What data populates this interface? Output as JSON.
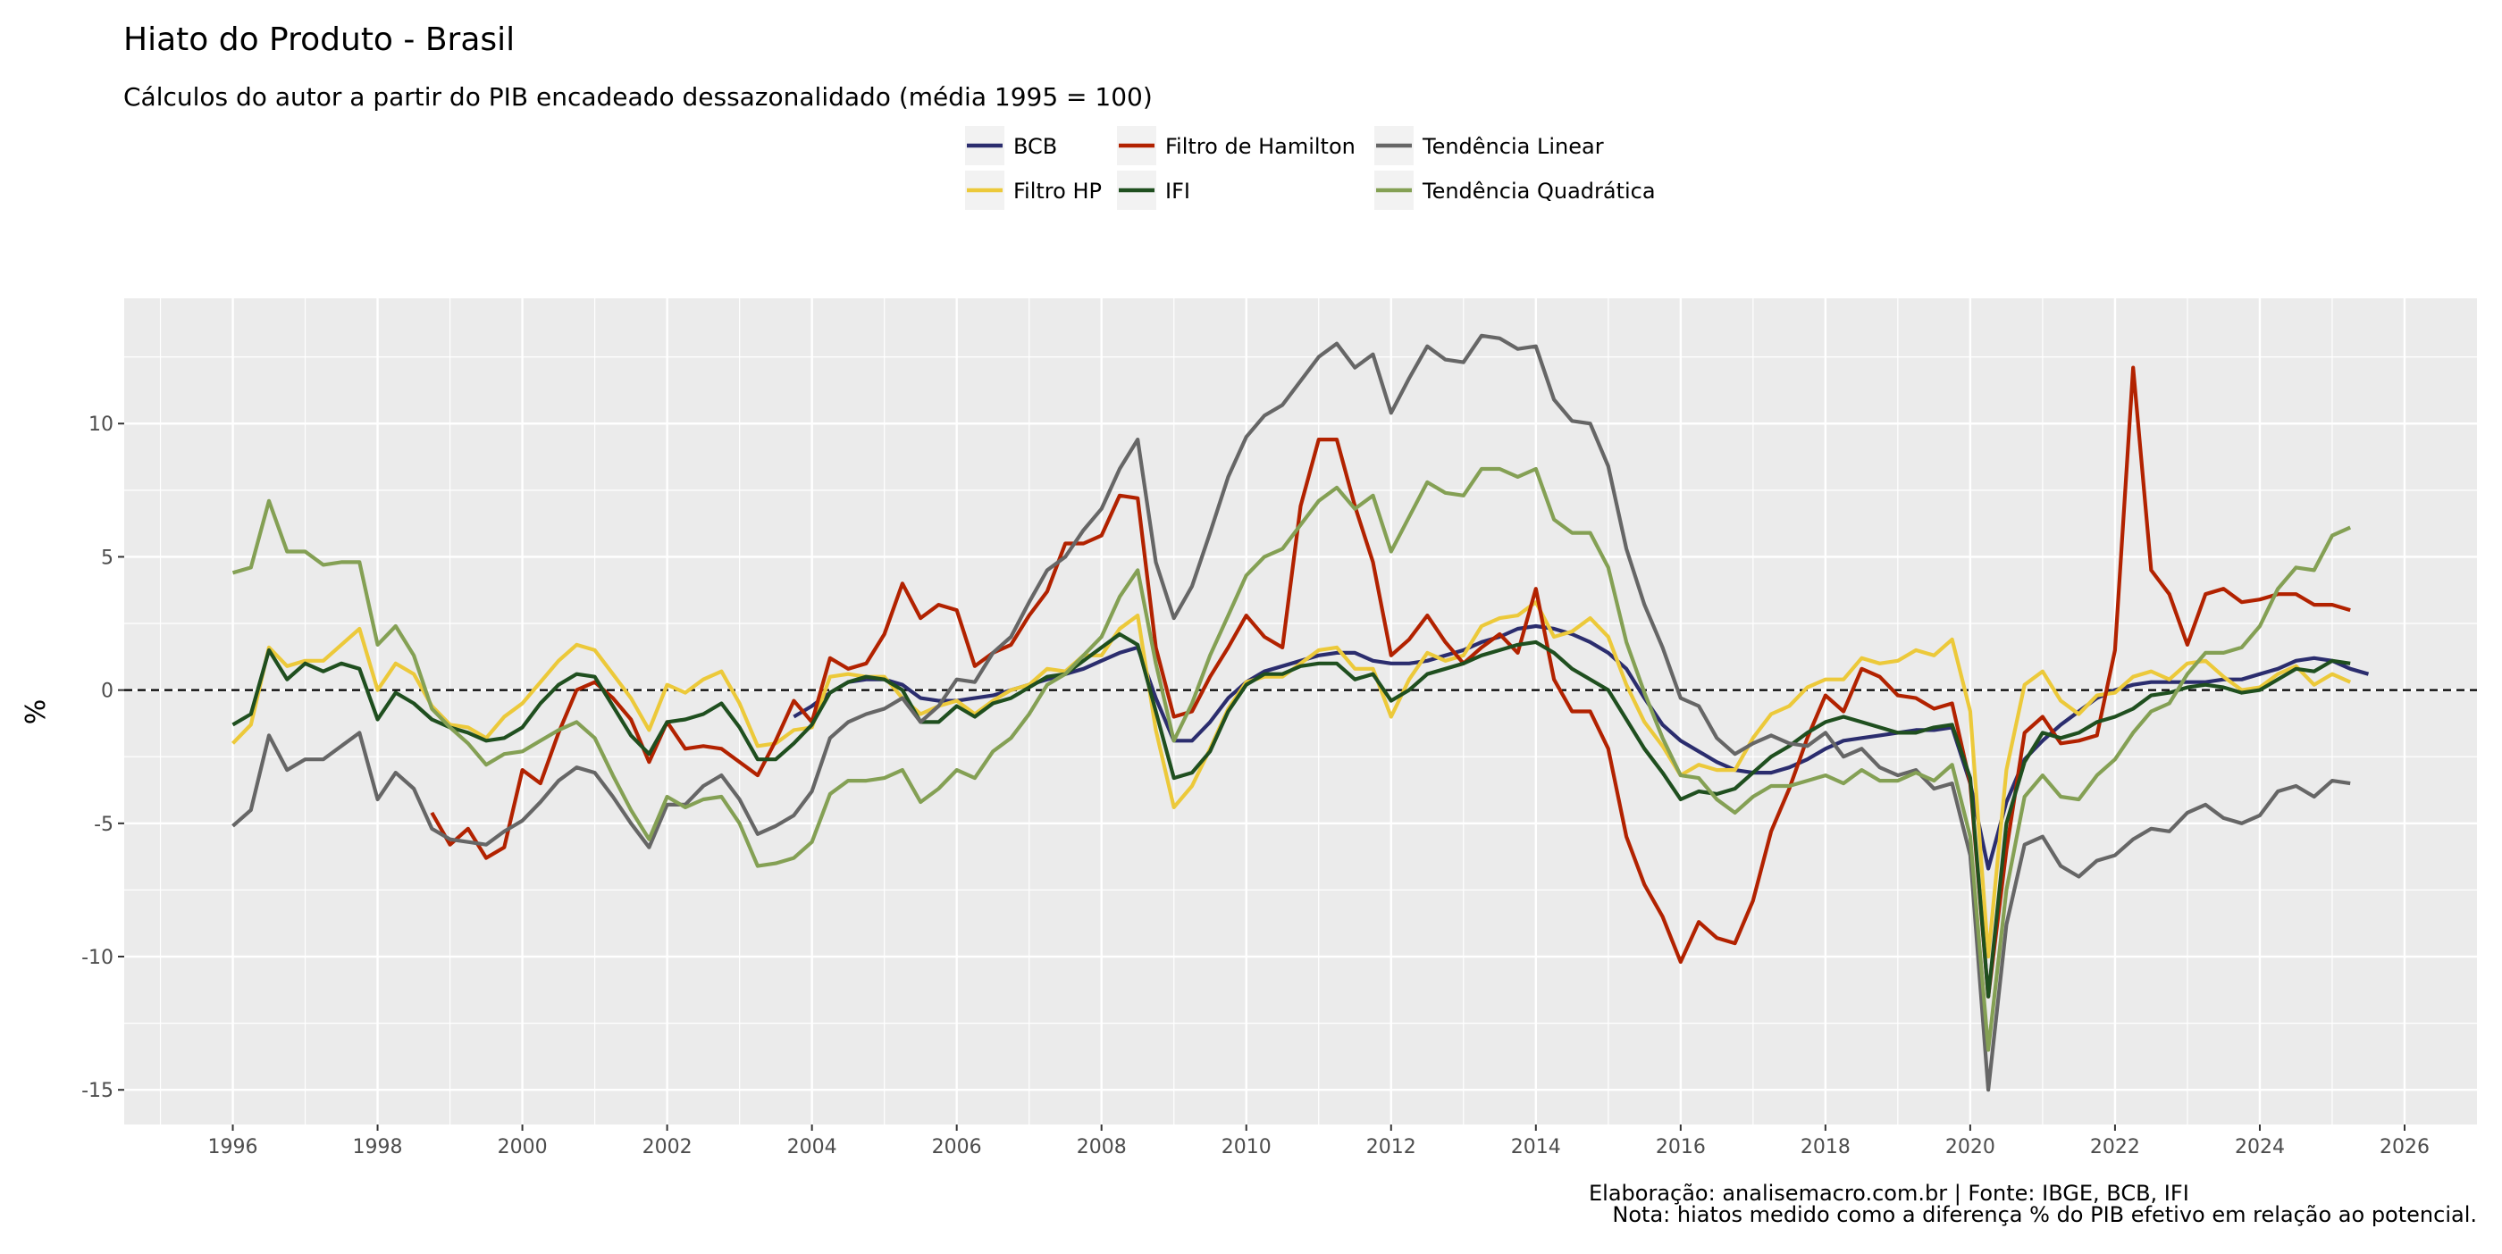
{
  "chart_data": {
    "type": "line",
    "title": "Hiato do Produto - Brasil",
    "subtitle": "Cálculos do autor a partir do PIB encadeado dessazonalidado (média 1995 = 100)",
    "xlabel": "",
    "ylabel": "%",
    "xlim": [
      1994.5,
      2027.0
    ],
    "ylim": [
      -16.3,
      14.7
    ],
    "x_ticks": [
      "1996",
      "1998",
      "2000",
      "2002",
      "2004",
      "2006",
      "2008",
      "2010",
      "2012",
      "2014",
      "2016",
      "2018",
      "2020",
      "2022",
      "2024",
      "2026"
    ],
    "y_ticks": [
      "-15",
      "-10",
      "-5",
      "0",
      "5",
      "10"
    ],
    "grid": true,
    "reference_line": {
      "y": 0,
      "style": "dashed"
    },
    "legend_placement": "top",
    "frequency": "quarterly",
    "series": [
      {
        "name": "BCB",
        "color": "#2b2d6e",
        "start": "2003-Q4",
        "values": [
          -1.0,
          -0.6,
          -0.1,
          0.3,
          0.4,
          0.4,
          0.2,
          -0.3,
          -0.4,
          -0.4,
          -0.3,
          -0.2,
          0.0,
          0.2,
          0.4,
          0.6,
          0.8,
          1.1,
          1.4,
          1.6,
          -0.3,
          -1.9,
          -1.9,
          -1.2,
          -0.3,
          0.3,
          0.7,
          0.9,
          1.1,
          1.3,
          1.4,
          1.4,
          1.1,
          1.0,
          1.0,
          1.1,
          1.3,
          1.5,
          1.8,
          2.0,
          2.3,
          2.4,
          2.3,
          2.1,
          1.8,
          1.4,
          0.8,
          -0.3,
          -1.3,
          -1.9,
          -2.3,
          -2.7,
          -3.0,
          -3.1,
          -3.1,
          -2.9,
          -2.6,
          -2.2,
          -1.9,
          -1.8,
          -1.7,
          -1.6,
          -1.5,
          -1.5,
          -1.4,
          -3.5,
          -6.7,
          -4.2,
          -2.6,
          -1.9,
          -1.3,
          -0.8,
          -0.3,
          0.0,
          0.2,
          0.3,
          0.3,
          0.3,
          0.3,
          0.4,
          0.4,
          0.6,
          0.8,
          1.1,
          1.2,
          1.1,
          0.8,
          0.6
        ]
      },
      {
        "name": "Filtro HP",
        "color": "#ecc93a",
        "start": "1996-Q1",
        "values": [
          -2.0,
          -1.3,
          1.6,
          0.9,
          1.1,
          1.1,
          1.7,
          2.3,
          0.0,
          1.0,
          0.6,
          -0.6,
          -1.3,
          -1.4,
          -1.8,
          -1.0,
          -0.5,
          0.3,
          1.1,
          1.7,
          1.5,
          0.6,
          -0.3,
          -1.5,
          0.2,
          -0.1,
          0.4,
          0.7,
          -0.5,
          -2.1,
          -2.0,
          -1.5,
          -1.4,
          0.5,
          0.6,
          0.5,
          0.5,
          -0.3,
          -0.9,
          -0.6,
          -0.4,
          -0.9,
          -0.4,
          0.0,
          0.2,
          0.8,
          0.7,
          1.3,
          1.3,
          2.3,
          2.8,
          -1.5,
          -4.4,
          -3.6,
          -2.2,
          -0.7,
          0.3,
          0.5,
          0.5,
          1.0,
          1.5,
          1.6,
          0.8,
          0.8,
          -1.0,
          0.4,
          1.4,
          1.1,
          1.3,
          2.4,
          2.7,
          2.8,
          3.3,
          2.0,
          2.2,
          2.7,
          2.0,
          0.2,
          -1.2,
          -2.1,
          -3.2,
          -2.8,
          -3.0,
          -3.0,
          -1.8,
          -0.9,
          -0.6,
          0.1,
          0.4,
          0.4,
          1.2,
          1.0,
          1.1,
          1.5,
          1.3,
          1.9,
          -0.8,
          -10.0,
          -3.0,
          0.2,
          0.7,
          -0.4,
          -0.9,
          -0.2,
          -0.1,
          0.5,
          0.7,
          0.4,
          1.0,
          1.1,
          0.5,
          0.0,
          0.1,
          0.6,
          0.9,
          0.2,
          0.6,
          0.3
        ]
      },
      {
        "name": "Filtro de Hamilton",
        "color": "#b22200",
        "start": "1998-Q4",
        "values": [
          -4.6,
          -5.8,
          -5.2,
          -6.3,
          -5.9,
          -3.0,
          -3.5,
          -1.6,
          0.0,
          0.3,
          -0.3,
          -1.1,
          -2.7,
          -1.2,
          -2.2,
          -2.1,
          -2.2,
          -2.7,
          -3.2,
          -1.9,
          -0.4,
          -1.2,
          1.2,
          0.8,
          1.0,
          2.1,
          4.0,
          2.7,
          3.2,
          3.0,
          0.9,
          1.4,
          1.7,
          2.8,
          3.7,
          5.5,
          5.5,
          5.8,
          7.3,
          7.2,
          1.6,
          -1.0,
          -0.8,
          0.5,
          1.6,
          2.8,
          2.0,
          1.6,
          6.9,
          9.4,
          9.4,
          6.9,
          4.8,
          1.3,
          1.9,
          2.8,
          1.8,
          1.0,
          1.6,
          2.1,
          1.4,
          3.8,
          0.4,
          -0.8,
          -0.8,
          -2.2,
          -5.5,
          -7.3,
          -8.5,
          -10.2,
          -8.7,
          -9.3,
          -9.5,
          -7.9,
          -5.3,
          -3.7,
          -1.8,
          -0.2,
          -0.8,
          0.8,
          0.5,
          -0.2,
          -0.3,
          -0.7,
          -0.5,
          -3.5,
          -11.5,
          -6.0,
          -1.6,
          -1.0,
          -2.0,
          -1.9,
          -1.7,
          1.5,
          12.1,
          4.5,
          3.6,
          1.7,
          3.6,
          3.8,
          3.3,
          3.4,
          3.6,
          3.6,
          3.2,
          3.2,
          3.0
        ]
      },
      {
        "name": "IFI",
        "color": "#1f4f1f",
        "start": "1996-Q1",
        "values": [
          -1.3,
          -0.9,
          1.5,
          0.4,
          1.0,
          0.7,
          1.0,
          0.8,
          -1.1,
          -0.1,
          -0.5,
          -1.1,
          -1.4,
          -1.6,
          -1.9,
          -1.8,
          -1.4,
          -0.5,
          0.2,
          0.6,
          0.5,
          -0.6,
          -1.7,
          -2.4,
          -1.2,
          -1.1,
          -0.9,
          -0.5,
          -1.4,
          -2.6,
          -2.6,
          -2.0,
          -1.3,
          -0.1,
          0.3,
          0.5,
          0.4,
          0.0,
          -1.2,
          -1.2,
          -0.6,
          -1.0,
          -0.5,
          -0.3,
          0.1,
          0.5,
          0.6,
          1.1,
          1.6,
          2.1,
          1.7,
          -0.8,
          -3.3,
          -3.1,
          -2.3,
          -0.8,
          0.2,
          0.6,
          0.6,
          0.9,
          1.0,
          1.0,
          0.4,
          0.6,
          -0.4,
          0.0,
          0.6,
          0.8,
          1.0,
          1.3,
          1.5,
          1.7,
          1.8,
          1.4,
          0.8,
          0.4,
          0.0,
          -1.1,
          -2.2,
          -3.1,
          -4.1,
          -3.8,
          -3.9,
          -3.7,
          -3.1,
          -2.5,
          -2.1,
          -1.6,
          -1.2,
          -1.0,
          -1.2,
          -1.4,
          -1.6,
          -1.6,
          -1.4,
          -1.3,
          -3.3,
          -11.5,
          -5.0,
          -2.7,
          -1.6,
          -1.8,
          -1.6,
          -1.2,
          -1.0,
          -0.7,
          -0.2,
          -0.1,
          0.1,
          0.2,
          0.1,
          -0.1,
          0.0,
          0.4,
          0.8,
          0.7,
          1.1,
          1.0
        ]
      },
      {
        "name": "Tendência Linear",
        "color": "#666666",
        "start": "1996-Q1",
        "values": [
          -5.1,
          -4.5,
          -1.7,
          -3.0,
          -2.6,
          -2.6,
          -2.1,
          -1.6,
          -4.1,
          -3.1,
          -3.7,
          -5.2,
          -5.6,
          -5.7,
          -5.8,
          -5.3,
          -4.9,
          -4.2,
          -3.4,
          -2.9,
          -3.1,
          -4.0,
          -5.0,
          -5.9,
          -4.3,
          -4.3,
          -3.6,
          -3.2,
          -4.1,
          -5.4,
          -5.1,
          -4.7,
          -3.8,
          -1.8,
          -1.2,
          -0.9,
          -0.7,
          -0.3,
          -1.2,
          -0.6,
          0.4,
          0.3,
          1.4,
          2.0,
          3.3,
          4.5,
          5.0,
          6.0,
          6.8,
          8.3,
          9.4,
          4.8,
          2.7,
          3.9,
          5.9,
          8.0,
          9.5,
          10.3,
          10.7,
          11.6,
          12.5,
          13.0,
          12.1,
          12.6,
          10.4,
          11.7,
          12.9,
          12.4,
          12.3,
          13.3,
          13.2,
          12.8,
          12.9,
          10.9,
          10.1,
          10.0,
          8.4,
          5.3,
          3.2,
          1.6,
          -0.3,
          -0.6,
          -1.8,
          -2.4,
          -2.0,
          -1.7,
          -2.0,
          -2.1,
          -1.6,
          -2.5,
          -2.2,
          -2.9,
          -3.2,
          -3.0,
          -3.7,
          -3.5,
          -6.2,
          -15.0,
          -8.8,
          -5.8,
          -5.5,
          -6.6,
          -7.0,
          -6.4,
          -6.2,
          -5.6,
          -5.2,
          -5.3,
          -4.6,
          -4.3,
          -4.8,
          -5.0,
          -4.7,
          -3.8,
          -3.6,
          -4.0,
          -3.4,
          -3.5
        ]
      },
      {
        "name": "Tendência Quadrática",
        "color": "#84a054",
        "start": "1996-Q1",
        "values": [
          4.4,
          4.6,
          7.1,
          5.2,
          5.2,
          4.7,
          4.8,
          4.8,
          1.7,
          2.4,
          1.3,
          -0.7,
          -1.4,
          -2.0,
          -2.8,
          -2.4,
          -2.3,
          -1.9,
          -1.5,
          -1.2,
          -1.8,
          -3.2,
          -4.5,
          -5.6,
          -4.0,
          -4.4,
          -4.1,
          -4.0,
          -5.0,
          -6.6,
          -6.5,
          -6.3,
          -5.7,
          -3.9,
          -3.4,
          -3.4,
          -3.3,
          -3.0,
          -4.2,
          -3.7,
          -3.0,
          -3.3,
          -2.3,
          -1.8,
          -0.9,
          0.2,
          0.6,
          1.3,
          2.0,
          3.5,
          4.5,
          1.0,
          -1.9,
          -0.5,
          1.3,
          2.8,
          4.3,
          5.0,
          5.3,
          6.2,
          7.1,
          7.6,
          6.8,
          7.3,
          5.2,
          6.5,
          7.8,
          7.4,
          7.3,
          8.3,
          8.3,
          8.0,
          8.3,
          6.4,
          5.9,
          5.9,
          4.6,
          1.8,
          -0.1,
          -1.8,
          -3.2,
          -3.3,
          -4.1,
          -4.6,
          -4.0,
          -3.6,
          -3.6,
          -3.4,
          -3.2,
          -3.5,
          -3.0,
          -3.4,
          -3.4,
          -3.1,
          -3.4,
          -2.8,
          -5.5,
          -13.5,
          -7.5,
          -4.0,
          -3.2,
          -4.0,
          -4.1,
          -3.2,
          -2.6,
          -1.6,
          -0.8,
          -0.5,
          0.6,
          1.4,
          1.4,
          1.6,
          2.4,
          3.8,
          4.6,
          4.5,
          5.8,
          6.1
        ]
      }
    ],
    "caption": "Elaboração: analisemacro.com.br | Fonte: IBGE, BCB, IFI",
    "note": "Nota: hiatos medido como a diferença % do PIB efetivo em relação ao potencial."
  }
}
